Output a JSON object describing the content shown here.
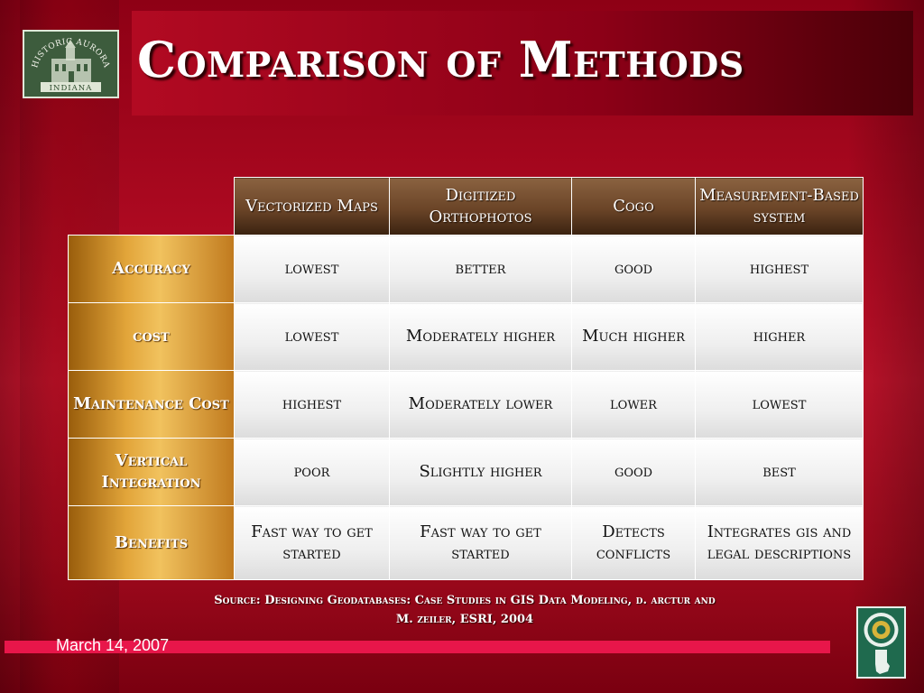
{
  "title": "Comparison of Methods",
  "logo": {
    "top_text": "HISTORIC AURORA",
    "bottom_text": "INDIANA"
  },
  "table": {
    "columns": [
      "Vectorized Maps",
      "Digitized Orthophotos",
      "Cogo",
      "Measurement-Based system"
    ],
    "rows": [
      {
        "label": "Accuracy",
        "cells": [
          "lowest",
          "better",
          "good",
          "highest"
        ]
      },
      {
        "label": "cost",
        "cells": [
          "lowest",
          "Moderately higher",
          "Much higher",
          "higher"
        ]
      },
      {
        "label": "Maintenance Cost",
        "cells": [
          "highest",
          "Moderately lower",
          "lower",
          "lowest"
        ]
      },
      {
        "label": "Vertical Integration",
        "cells": [
          "poor",
          "Slightly  higher",
          "good",
          "best"
        ]
      },
      {
        "label": "Benefits",
        "cells": [
          "Fast way to get started",
          "Fast way to get started",
          "Detects conflicts",
          "Integrates gis and legal descriptions"
        ]
      }
    ]
  },
  "source": {
    "line1": "Source: Designing Geodatabases: Case Studies in GIS Data Modeling, d. arctur and",
    "line2": "M. zeiler, ESRI, 2004"
  },
  "date": "March 14, 2007"
}
